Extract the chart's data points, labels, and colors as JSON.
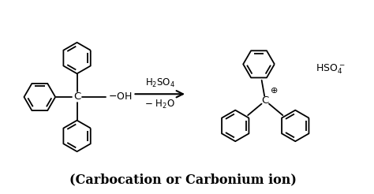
{
  "bg_color": "#ffffff",
  "title": "(Carbocation or Carbonium ion)",
  "title_fontsize": 11.5,
  "title_fontstyle": "bold",
  "figsize": [
    4.74,
    2.46
  ],
  "dpi": 100,
  "lw": 1.3,
  "hex_r": 0.42
}
